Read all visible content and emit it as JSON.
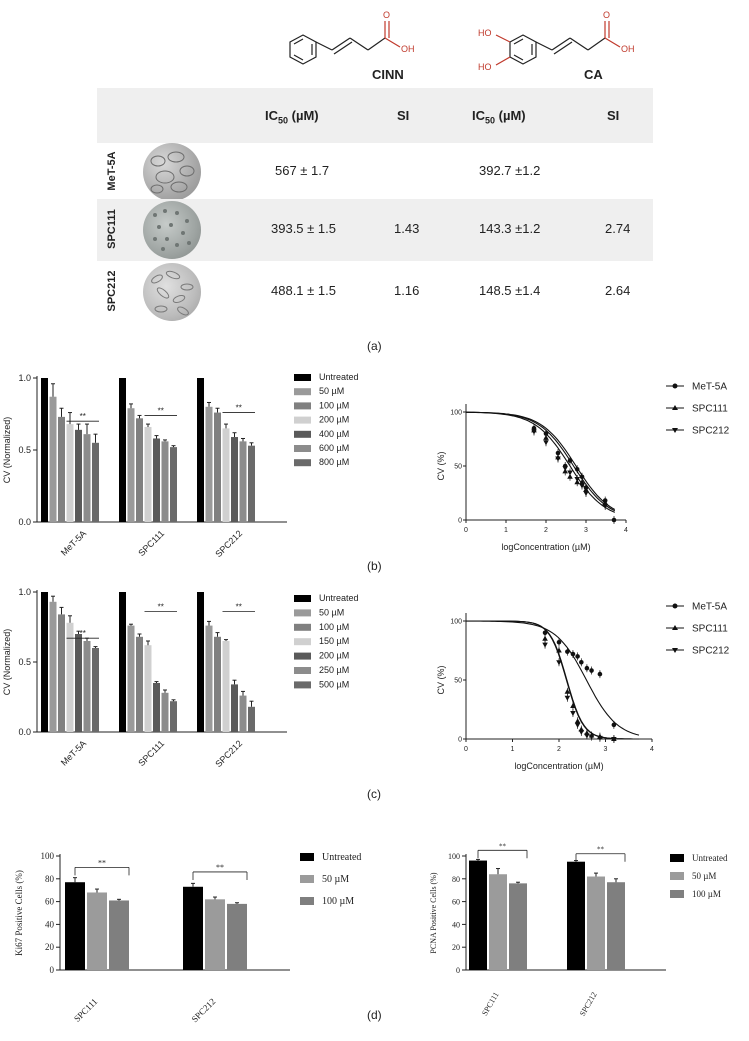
{
  "molecules": {
    "left": {
      "name": "CINN",
      "oh": "OH",
      "o": "O"
    },
    "right": {
      "name": "CA",
      "ho1": "HO",
      "ho2": "HO",
      "oh": "OH",
      "o": "O"
    }
  },
  "table": {
    "headers": {
      "ic50_cinn_main": "IC",
      "ic50_sub": "50",
      "ic50_unit": " (µM)",
      "si_cinn": "SI",
      "si_ca": "SI"
    },
    "rows": [
      {
        "cell_line": "MeT-5A",
        "cinn_ic50": "567 ± 1.7",
        "cinn_si": "",
        "ca_ic50": "392.7 ±1.2",
        "ca_si": ""
      },
      {
        "cell_line": "SPC111",
        "cinn_ic50": "393.5 ± 1.5",
        "cinn_si": "1.43",
        "ca_ic50": "143.3 ±1.2",
        "ca_si": "2.74"
      },
      {
        "cell_line": "SPC212",
        "cinn_ic50": "488.1 ± 1.5",
        "cinn_si": "1.16",
        "ca_ic50": "148.5 ±1.4",
        "ca_si": "2.64"
      }
    ]
  },
  "panel_labels": {
    "a": "(a)",
    "b": "(b)",
    "c": "(c)",
    "d": "(d)"
  },
  "colors": {
    "black": "#000000",
    "g1": "#9a9a9a",
    "g2": "#808080",
    "g3": "#d0d0d0",
    "g4": "#5a5a5a",
    "g5": "#8c8c8c",
    "g6": "#6a6a6a"
  },
  "chart_data": [
    {
      "id": "b_bar",
      "type": "bar",
      "ylabel": "CV (Normalized)",
      "ylim": [
        0,
        1.0
      ],
      "yticks": [
        "0.0",
        "0.5",
        "1.0"
      ],
      "categories": [
        "MeT-5A",
        "SPC111",
        "SPC212"
      ],
      "series": [
        {
          "name": "Untreated",
          "values": [
            1.0,
            1.0,
            1.0
          ],
          "err": [
            0,
            0,
            0
          ]
        },
        {
          "name": "50 µM",
          "values": [
            0.87,
            0.79,
            0.8
          ],
          "err": [
            0.09,
            0.03,
            0.03
          ]
        },
        {
          "name": "100 µM",
          "values": [
            0.73,
            0.72,
            0.76
          ],
          "err": [
            0.06,
            0.02,
            0.03
          ]
        },
        {
          "name": "200 µM",
          "values": [
            0.68,
            0.66,
            0.65
          ],
          "err": [
            0.08,
            0.02,
            0.03
          ]
        },
        {
          "name": "400 µM",
          "values": [
            0.64,
            0.58,
            0.59
          ],
          "err": [
            0.04,
            0.02,
            0.03
          ]
        },
        {
          "name": "600 µM",
          "values": [
            0.61,
            0.56,
            0.56
          ],
          "err": [
            0.07,
            0.01,
            0.02
          ]
        },
        {
          "name": "800 µM",
          "values": [
            0.55,
            0.52,
            0.53
          ],
          "err": [
            0.06,
            0.01,
            0.02
          ]
        }
      ],
      "sig": "**"
    },
    {
      "id": "b_curve",
      "type": "scatter",
      "ylabel": "CV (%)",
      "xlabel": "logConcentration (µM)",
      "xlim": [
        0,
        4
      ],
      "ylim": [
        0,
        100
      ],
      "xticks": [
        "0",
        "1",
        "2",
        "3",
        "4"
      ],
      "yticks": [
        "0",
        "50",
        "100"
      ],
      "series": [
        {
          "name": "MeT-5A",
          "logIC50": 2.75,
          "x": [
            1.7,
            2.0,
            2.3,
            2.48,
            2.6,
            2.78,
            2.9,
            3.0,
            3.48,
            3.7
          ],
          "y": [
            85,
            80,
            62,
            50,
            55,
            47,
            40,
            30,
            18,
            0
          ]
        },
        {
          "name": "SPC111",
          "logIC50": 2.6,
          "x": [
            1.7,
            2.0,
            2.3,
            2.48,
            2.6,
            2.78,
            2.9,
            3.0,
            3.48
          ],
          "y": [
            83,
            76,
            58,
            45,
            40,
            35,
            35,
            28,
            16
          ]
        },
        {
          "name": "SPC212",
          "logIC50": 2.69,
          "x": [
            1.7,
            2.0,
            2.3,
            2.48,
            2.6,
            2.78,
            2.9,
            3.0,
            3.48
          ],
          "y": [
            82,
            72,
            57,
            48,
            44,
            38,
            32,
            25,
            13
          ]
        }
      ]
    },
    {
      "id": "c_bar",
      "type": "bar",
      "ylabel": "CV (Normalized)",
      "ylim": [
        0,
        1.0
      ],
      "yticks": [
        "0.0",
        "0.5",
        "1.0"
      ],
      "categories": [
        "MeT-5A",
        "SPC111",
        "SPC212"
      ],
      "series": [
        {
          "name": "Untreated",
          "values": [
            1.0,
            1.0,
            1.0
          ],
          "err": [
            0,
            0,
            0
          ]
        },
        {
          "name": "50 µM",
          "values": [
            0.93,
            0.76,
            0.76
          ],
          "err": [
            0.04,
            0.01,
            0.03
          ]
        },
        {
          "name": "100 µM",
          "values": [
            0.84,
            0.68,
            0.68
          ],
          "err": [
            0.05,
            0.02,
            0.03
          ]
        },
        {
          "name": "150 µM",
          "values": [
            0.78,
            0.62,
            0.65
          ],
          "err": [
            0.05,
            0.03,
            0.01
          ]
        },
        {
          "name": "200 µM",
          "values": [
            0.7,
            0.35,
            0.34
          ],
          "err": [
            0.02,
            0.01,
            0.03
          ]
        },
        {
          "name": "250 µM",
          "values": [
            0.65,
            0.28,
            0.26
          ],
          "err": [
            0.02,
            0.02,
            0.03
          ]
        },
        {
          "name": "500 µM",
          "values": [
            0.6,
            0.22,
            0.18
          ],
          "err": [
            0.01,
            0.01,
            0.04
          ]
        }
      ],
      "sig": "**"
    },
    {
      "id": "c_curve",
      "type": "scatter",
      "ylabel": "CV (%)",
      "xlabel": "logConcentration (µM)",
      "xlim": [
        0,
        4
      ],
      "ylim": [
        0,
        100
      ],
      "xticks": [
        "0",
        "1",
        "2",
        "3",
        "4"
      ],
      "yticks": [
        "0",
        "50",
        "100"
      ],
      "series": [
        {
          "name": "MeT-5A",
          "logIC50": 2.59,
          "x": [
            1.7,
            2.0,
            2.18,
            2.3,
            2.4,
            2.48,
            2.6,
            2.7,
            2.88,
            3.18
          ],
          "y": [
            90,
            82,
            74,
            72,
            70,
            65,
            60,
            58,
            55,
            12
          ]
        },
        {
          "name": "SPC111",
          "logIC50": 2.16,
          "x": [
            1.7,
            2.0,
            2.18,
            2.3,
            2.4,
            2.48,
            2.6,
            2.7,
            2.88,
            3.18
          ],
          "y": [
            85,
            75,
            40,
            28,
            15,
            8,
            5,
            3,
            2,
            0
          ]
        },
        {
          "name": "SPC212",
          "logIC50": 2.17,
          "x": [
            1.7,
            2.0,
            2.18,
            2.3,
            2.4,
            2.48,
            2.6,
            2.7,
            2.88,
            3.18
          ],
          "y": [
            80,
            65,
            35,
            22,
            12,
            6,
            3,
            2,
            1,
            0
          ]
        }
      ]
    },
    {
      "id": "d_ki67",
      "type": "bar",
      "ylabel": "Ki67 Positive Cells (%)",
      "ylim": [
        0,
        100
      ],
      "yticks": [
        "0",
        "20",
        "40",
        "60",
        "80",
        "100"
      ],
      "categories": [
        "SPC111",
        "SPC212"
      ],
      "series": [
        {
          "name": "Untreated",
          "values": [
            77,
            73
          ],
          "err": [
            4,
            3
          ]
        },
        {
          "name": "50 µM",
          "values": [
            68,
            62
          ],
          "err": [
            3,
            2
          ]
        },
        {
          "name": "100 µM",
          "values": [
            61,
            58
          ],
          "err": [
            1,
            1
          ]
        }
      ],
      "sig": "**"
    },
    {
      "id": "d_pcna",
      "type": "bar",
      "ylabel": "PCNA Positive Cells (%)",
      "ylim": [
        0,
        100
      ],
      "yticks": [
        "0",
        "20",
        "40",
        "60",
        "80",
        "100"
      ],
      "categories": [
        "SPC111",
        "SPC212"
      ],
      "series": [
        {
          "name": "Untreated",
          "values": [
            96,
            95
          ],
          "err": [
            1,
            1
          ]
        },
        {
          "name": "50 µM",
          "values": [
            84,
            82
          ],
          "err": [
            5,
            3
          ]
        },
        {
          "name": "100 µM",
          "values": [
            76,
            77
          ],
          "err": [
            1,
            3
          ]
        }
      ],
      "sig": "**"
    }
  ]
}
